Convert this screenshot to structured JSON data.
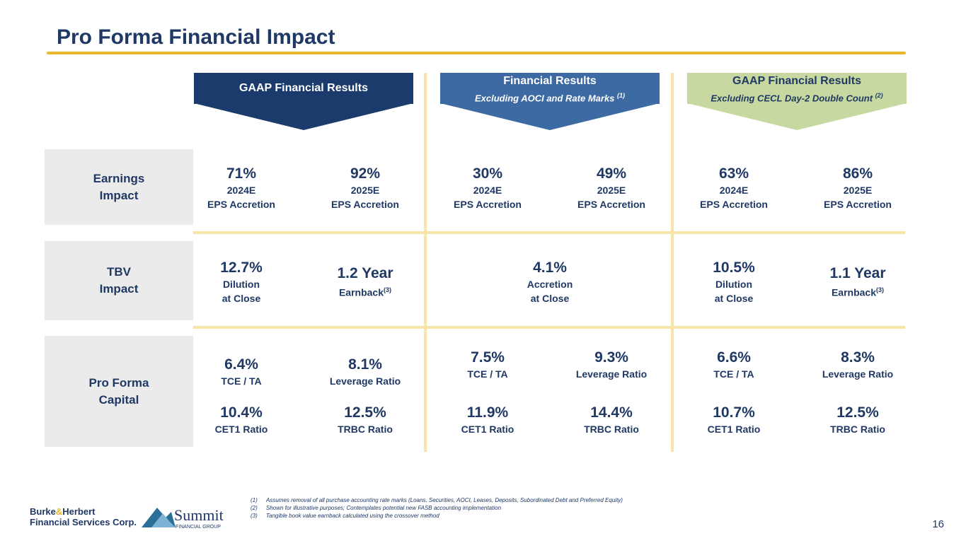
{
  "title": "Pro Forma Financial Impact",
  "banners": [
    {
      "line1": "GAAP Financial Results",
      "line2": "",
      "sup": ""
    },
    {
      "line1": "Financial Results",
      "line2": "Excluding AOCI and Rate Marks",
      "sup": "(1)"
    },
    {
      "line1": "GAAP Financial Results",
      "line2": "Excluding CECL Day-2 Double Count",
      "sup": "(2)"
    }
  ],
  "rows": {
    "earnings": {
      "line1": "Earnings",
      "line2": "Impact"
    },
    "tbv": {
      "line1": "TBV",
      "line2": "Impact"
    },
    "capital": {
      "line1": "Pro Forma",
      "line2": "Capital"
    }
  },
  "earnings": [
    {
      "value": "71%",
      "line1": "2024E",
      "line2": "EPS Accretion"
    },
    {
      "value": "92%",
      "line1": "2025E",
      "line2": "EPS Accretion"
    },
    {
      "value": "30%",
      "line1": "2024E",
      "line2": "EPS Accretion"
    },
    {
      "value": "49%",
      "line1": "2025E",
      "line2": "EPS Accretion"
    },
    {
      "value": "63%",
      "line1": "2024E",
      "line2": "EPS Accretion"
    },
    {
      "value": "86%",
      "line1": "2025E",
      "line2": "EPS Accretion"
    }
  ],
  "tbv": [
    {
      "value": "12.7%",
      "line1": "Dilution",
      "line2": "at Close"
    },
    {
      "value": "1.2 Year",
      "line1": "Earnback",
      "sup": "(3)"
    },
    {
      "value": "4.1%",
      "line1": "Accretion",
      "line2": "at Close"
    },
    {
      "value": "10.5%",
      "line1": "Dilution",
      "line2": "at Close"
    },
    {
      "value": "1.1 Year",
      "line1": "Earnback",
      "sup": "(3)"
    }
  ],
  "capital": [
    {
      "value": "6.4%",
      "label": "TCE / TA"
    },
    {
      "value": "8.1%",
      "label": "Leverage Ratio"
    },
    {
      "value": "10.4%",
      "label": "CET1 Ratio"
    },
    {
      "value": "12.5%",
      "label": "TRBC Ratio"
    },
    {
      "value": "7.5%",
      "label": "TCE / TA"
    },
    {
      "value": "9.3%",
      "label": "Leverage Ratio"
    },
    {
      "value": "11.9%",
      "label": "CET1 Ratio"
    },
    {
      "value": "14.4%",
      "label": "TRBC Ratio"
    },
    {
      "value": "6.6%",
      "label": "TCE / TA"
    },
    {
      "value": "8.3%",
      "label": "Leverage Ratio"
    },
    {
      "value": "10.7%",
      "label": "CET1 Ratio"
    },
    {
      "value": "12.5%",
      "label": "TRBC Ratio"
    }
  ],
  "footnotes": [
    {
      "num": "(1)",
      "text": "Assumes removal of all purchase accounting rate marks (Loans, Securities, AOCI, Leases, Deposits, Subordinated Debt and Preferred Equity)"
    },
    {
      "num": "(2)",
      "text": "Shown for illustrative purposes; Contemplates potential new FASB accounting implementation"
    },
    {
      "num": "(3)",
      "text": "Tangible book value earnback calculated using the crossover method"
    }
  ],
  "page_number": "16",
  "logos": {
    "burke_line1a": "Burke",
    "burke_amp": "&",
    "burke_line1b": "Herbert",
    "burke_line2": "Financial Services Corp.",
    "summit_name": "Summit",
    "summit_sub": "FINANCIAL GROUP"
  },
  "colors": {
    "navy": "#1a3b6b",
    "blue": "#3e6aa3",
    "green": "#c7d9a0",
    "gold": "#e9b62f",
    "grid": "#f6e4a8"
  }
}
